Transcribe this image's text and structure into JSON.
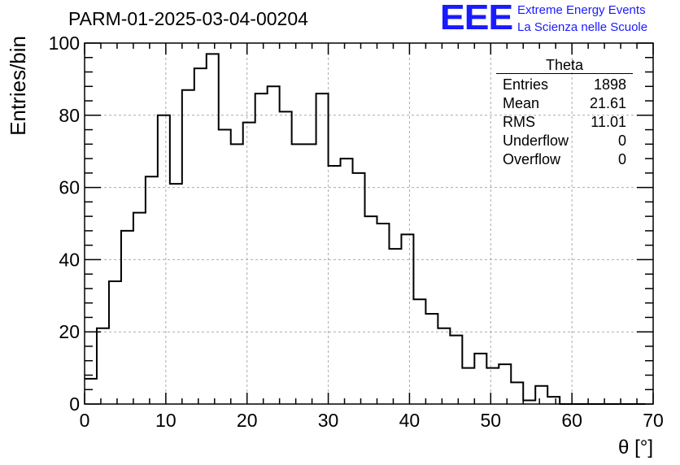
{
  "header": {
    "run_title": "PARM-01-2025-03-04-00204",
    "logo_text": "EEE",
    "logo_line1": "Extreme Energy Events",
    "logo_line2": "La Scienza nelle Scuole"
  },
  "stats": {
    "title": "Theta",
    "rows": [
      {
        "label": "Entries",
        "value": "1898"
      },
      {
        "label": "Mean",
        "value": "21.61"
      },
      {
        "label": "RMS",
        "value": "11.01"
      },
      {
        "label": "Underflow",
        "value": "0"
      },
      {
        "label": "Overflow",
        "value": "0"
      }
    ]
  },
  "chart_data": {
    "type": "histogram",
    "title": "PARM-01-2025-03-04-00204",
    "xlabel": "θ [°]",
    "ylabel": "Entries/bin",
    "xlim": [
      0,
      70
    ],
    "ylim": [
      0,
      100
    ],
    "grid": true,
    "bin_width": 1.5,
    "bin_start": 0,
    "x_ticks": [
      0,
      10,
      20,
      30,
      40,
      50,
      60,
      70
    ],
    "y_ticks": [
      0,
      20,
      40,
      60,
      80,
      100
    ],
    "values": [
      7,
      21,
      34,
      48,
      53,
      63,
      80,
      61,
      87,
      93,
      97,
      76,
      72,
      78,
      86,
      88,
      81,
      72,
      72,
      86,
      66,
      68,
      64,
      52,
      50,
      43,
      47,
      29,
      25,
      21,
      19,
      10,
      14,
      10,
      11,
      6,
      1,
      5,
      2,
      0,
      0,
      0,
      0,
      0,
      0,
      0
    ]
  }
}
